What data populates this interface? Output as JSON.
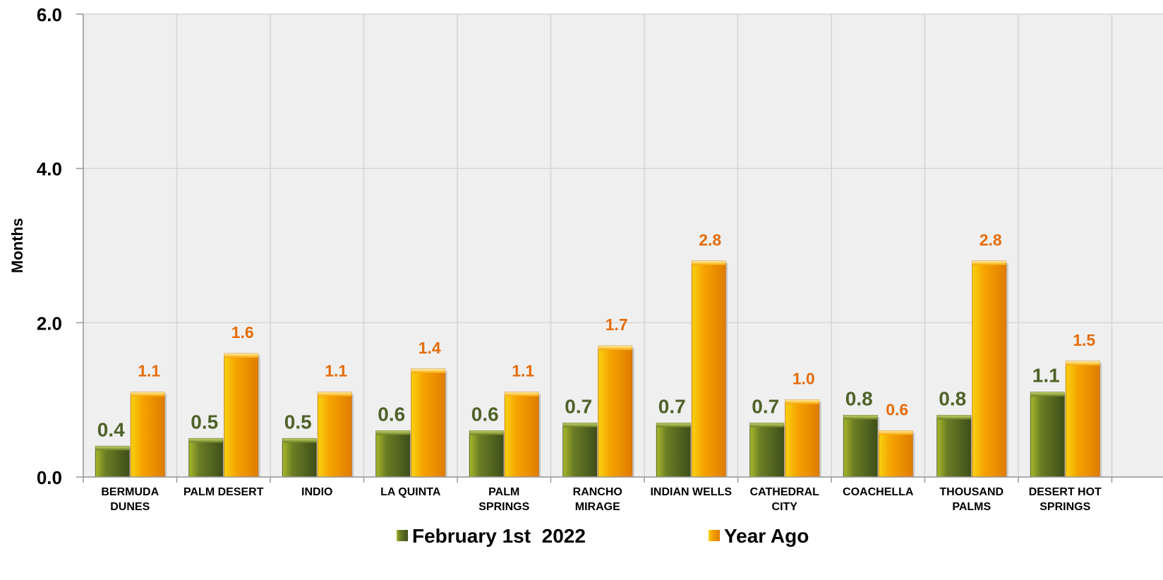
{
  "chart_data": {
    "type": "bar",
    "title": "",
    "xlabel": "",
    "ylabel": "Months",
    "ylim": [
      0,
      6
    ],
    "yticks": [
      "0.0",
      "2.0",
      "4.0",
      "6.0"
    ],
    "ytick_values": [
      0,
      2,
      4,
      6
    ],
    "grid": true,
    "legend_position": "bottom",
    "categories": [
      [
        "BERMUDA",
        "DUNES"
      ],
      [
        "PALM DESERT"
      ],
      [
        "INDIO"
      ],
      [
        "LA QUINTA"
      ],
      [
        "PALM",
        "SPRINGS"
      ],
      [
        "RANCHO",
        "MIRAGE"
      ],
      [
        "INDIAN WELLS"
      ],
      [
        "CATHEDRAL",
        "CITY"
      ],
      [
        "COACHELLA"
      ],
      [
        "THOUSAND",
        "PALMS"
      ],
      [
        "DESERT HOT",
        "SPRINGS"
      ]
    ],
    "series": [
      {
        "name": "February 1st  2022",
        "color": "#4f6228",
        "label_color": "#4f6228",
        "values": [
          0.4,
          0.5,
          0.5,
          0.6,
          0.6,
          0.7,
          0.7,
          0.7,
          0.8,
          0.8,
          1.1
        ],
        "labels": [
          "0.4",
          "0.5",
          "0.5",
          "0.6",
          "0.6",
          "0.7",
          "0.7",
          "0.7",
          "0.8",
          "0.8",
          "1.1"
        ]
      },
      {
        "name": "Year Ago",
        "color": "#f39c12",
        "label_color": "#e46c0a",
        "values": [
          1.1,
          1.6,
          1.1,
          1.4,
          1.1,
          1.7,
          2.8,
          1.0,
          0.6,
          2.8,
          1.5
        ],
        "labels": [
          "1.1",
          "1.6",
          "1.1",
          "1.4",
          "1.1",
          "1.7",
          "2.8",
          "1.0",
          "0.6",
          "2.8",
          "1.5"
        ]
      }
    ]
  }
}
